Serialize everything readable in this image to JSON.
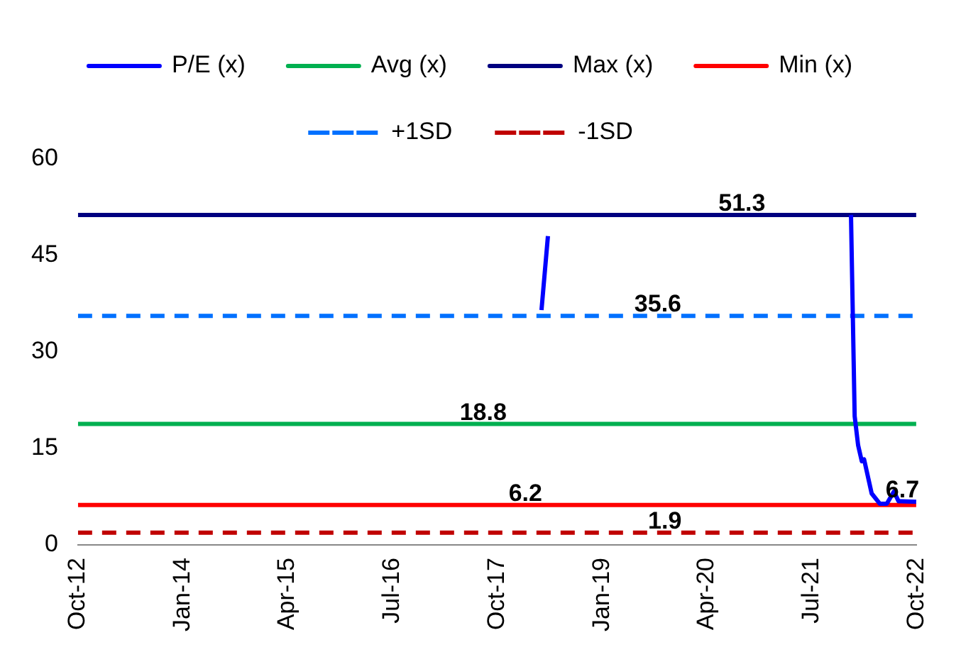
{
  "chart_data": {
    "type": "line",
    "xlim": [
      "2012-10",
      "2022-10"
    ],
    "ylim": [
      0,
      60
    ],
    "xticks": [
      {
        "value": "2012-10",
        "label": "Oct-12"
      },
      {
        "value": "2014-01",
        "label": "Jan-14"
      },
      {
        "value": "2015-04",
        "label": "Apr-15"
      },
      {
        "value": "2016-07",
        "label": "Jul-16"
      },
      {
        "value": "2017-10",
        "label": "Oct-17"
      },
      {
        "value": "2019-01",
        "label": "Jan-19"
      },
      {
        "value": "2020-04",
        "label": "Apr-20"
      },
      {
        "value": "2021-07",
        "label": "Jul-21"
      },
      {
        "value": "2022-10",
        "label": "Oct-22"
      }
    ],
    "yticks": [
      0,
      15,
      30,
      45,
      60
    ],
    "grid": false,
    "legend": "top",
    "marker": "none",
    "series": [
      {
        "name": "P/E (x)",
        "color": "#0000ff",
        "x": [
          "2018-04-12",
          "2018-05-10",
          "2019-06-01",
          "2021-12-20",
          "2022-01-05",
          "2022-01-20",
          "2022-02-05",
          "2022-02-15",
          "2022-03-20",
          "2022-04-25",
          "2022-05-25",
          "2022-06-25",
          "2022-07-15",
          "2022-09-30"
        ],
        "values": [
          36.5,
          48.0,
          null,
          51.3,
          20,
          15.5,
          13.0,
          13.3,
          8.0,
          6.4,
          6.4,
          8.3,
          6.8,
          6.7
        ]
      },
      {
        "name": "Avg (x)",
        "color": "#00b050",
        "x": [
          "2012-10",
          "2022-09-30"
        ],
        "values": [
          18.8,
          18.8
        ]
      },
      {
        "name": "Max (x)",
        "color": "#000080",
        "x": [
          "2012-10",
          "2022-09-30"
        ],
        "values": [
          51.3,
          51.3
        ]
      },
      {
        "name": "Min (x)",
        "color": "#ff0000",
        "x": [
          "2012-10",
          "2022-09-30"
        ],
        "values": [
          6.2,
          6.2
        ]
      },
      {
        "name": "+1SD",
        "color": "#0070ff",
        "line_style": "dashed",
        "x": [
          "2012-10",
          "2022-09-30"
        ],
        "values": [
          35.6,
          35.6
        ]
      },
      {
        "name": "-1SD",
        "color": "#c00000",
        "line_style": "dashed",
        "x": [
          "2012-10",
          "2022-09-30"
        ],
        "values": [
          1.9,
          1.9
        ]
      }
    ],
    "annotations": [
      {
        "text": "51.3",
        "x": "2020-09",
        "y": 51.3
      },
      {
        "text": "35.6",
        "x": "2019-09",
        "y": 35.6
      },
      {
        "text": "18.8",
        "x": "2017-08",
        "y": 18.8
      },
      {
        "text": "6.2",
        "x": "2018-02",
        "y": 6.2
      },
      {
        "text": "1.9",
        "x": "2019-10",
        "y": 1.9
      },
      {
        "text": "6.7",
        "x": "2022-08",
        "y": 6.7
      }
    ]
  }
}
